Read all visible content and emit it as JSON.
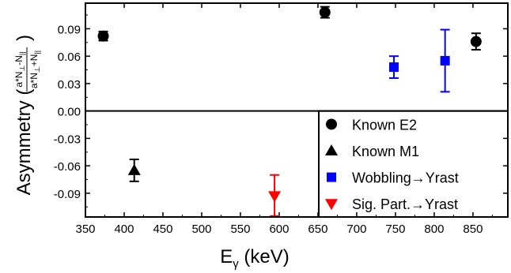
{
  "chart_data": {
    "type": "scatter",
    "title": "",
    "xlabel": {
      "main": "E",
      "sub": "γ",
      "unit": " (keV)"
    },
    "ylabel": {
      "main": "Asymmetry (",
      "close": ")"
    },
    "ylabel_fraction": {
      "numerator": [
        "a*N",
        "⊥",
        "-N",
        "||"
      ],
      "denominator": [
        "a*N",
        "⊥",
        "+N",
        "||"
      ]
    },
    "xlim": [
      350,
      895
    ],
    "ylim": [
      -0.116,
      0.118
    ],
    "xticks": [
      350,
      400,
      450,
      500,
      550,
      600,
      650,
      700,
      750,
      800,
      850
    ],
    "yticks": [
      0.09,
      0.06,
      0.03,
      0.0,
      -0.03,
      -0.06,
      -0.09
    ],
    "ytick_labels": [
      "0.09",
      "0.06",
      "0.03",
      "0.00",
      "-0.03",
      "-0.06",
      "-0.09"
    ],
    "zero_line": true,
    "legend_placement": "bottom-right",
    "series": [
      {
        "name": "Known E2",
        "marker": "circle",
        "color": "#000000",
        "points": [
          {
            "x": 373,
            "y": 0.082,
            "err": 0.005
          },
          {
            "x": 659,
            "y": 0.108,
            "err": 0.006
          },
          {
            "x": 854,
            "y": 0.076,
            "err": 0.009
          }
        ]
      },
      {
        "name": "Known M1",
        "marker": "triangle-up",
        "color": "#000000",
        "points": [
          {
            "x": 413,
            "y": -0.065,
            "err": 0.012
          }
        ]
      },
      {
        "name": "Wobbling→Yrast",
        "marker": "square",
        "color": "#0000ff",
        "points": [
          {
            "x": 748,
            "y": 0.048,
            "err": 0.012
          },
          {
            "x": 814,
            "y": 0.055,
            "err": 0.034
          }
        ]
      },
      {
        "name": "Sig. Part.→Yrast",
        "marker": "triangle-down",
        "color": "#ff0000",
        "points": [
          {
            "x": 594,
            "y": -0.093,
            "err_up": 0.023,
            "err_down": 0.022
          }
        ]
      }
    ]
  }
}
